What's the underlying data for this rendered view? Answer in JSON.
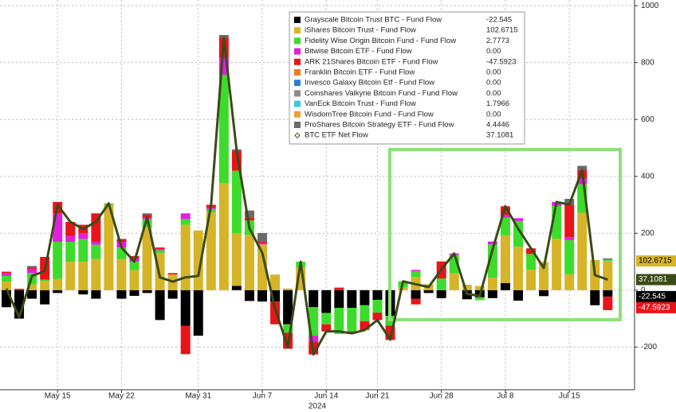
{
  "chart_data": {
    "type": "bar",
    "stacked": true,
    "xlabel": "2024",
    "categories": [
      null,
      null,
      null,
      null,
      "May 15",
      null,
      null,
      null,
      null,
      "May 22",
      null,
      null,
      null,
      null,
      null,
      "May 31",
      null,
      null,
      null,
      null,
      "Jun 7",
      null,
      null,
      null,
      null,
      "Jun 14",
      null,
      null,
      null,
      "Jun 21",
      null,
      null,
      null,
      null,
      "Jun 28",
      null,
      null,
      null,
      null,
      "Jul 8",
      null,
      null,
      null,
      null,
      "Jul 15",
      null,
      null,
      null
    ],
    "ylim": [
      -350,
      1020
    ],
    "yticks": [
      -200,
      0,
      200,
      400,
      600,
      800,
      1000
    ],
    "grid": true,
    "y_axis_side": "right",
    "legend": "top",
    "series": [
      {
        "name": "Grayscale Bitcoin Trust BTC - Fund Flow",
        "color": "#000000",
        "legend_value": "-22.545",
        "end_label": true,
        "values": [
          -60,
          -100,
          -30,
          -50,
          -10,
          0,
          -15,
          -30,
          0,
          -30,
          -20,
          -10,
          -105,
          -30,
          -125,
          -160,
          0,
          0,
          15,
          -38,
          -40,
          -40,
          -120,
          0,
          -60,
          -80,
          -62,
          -62,
          -53,
          -34,
          -90,
          0,
          -30,
          -10,
          -28,
          0,
          -32,
          -25,
          -28,
          25,
          -37,
          0,
          -21,
          0,
          0,
          0,
          -53,
          -22.545
        ]
      },
      {
        "name": "iShares Bitcoin Trust - Fund Flow",
        "color": "#d6b428",
        "legend_value": "102.6715",
        "end_label": true,
        "values": [
          30,
          0,
          20,
          32,
          40,
          100,
          100,
          110,
          300,
          110,
          70,
          220,
          130,
          55,
          230,
          210,
          275,
          377,
          185,
          195,
          161,
          55,
          6,
          80,
          0,
          0,
          0,
          0,
          0,
          0,
          1,
          10,
          46,
          21,
          1,
          59,
          19,
          15,
          44,
          168,
          153,
          72,
          99,
          181,
          56,
          272,
          106,
          102.6715
        ]
      },
      {
        "name": "Fidelity Wise Origin Bitcoin Fund - Fund Flow",
        "color": "#3ddc2c",
        "legend_value": "2.7773",
        "values": [
          20,
          0,
          40,
          5,
          130,
          70,
          80,
          50,
          5,
          40,
          30,
          30,
          10,
          0,
          20,
          0,
          10,
          380,
          220,
          50,
          0,
          0,
          -30,
          20,
          -100,
          -40,
          -92,
          -83,
          -56,
          -45,
          -35,
          21,
          20,
          0,
          40,
          65,
          0,
          -10,
          117,
          62,
          90,
          55,
          0,
          115,
          120,
          100,
          0,
          2.7773
        ]
      },
      {
        "name": "Bitwise Bitcoin ETF - Fund Flow",
        "color": "#e21ee0",
        "legend_value": "0.00",
        "values": [
          10,
          0,
          15,
          0,
          100,
          20,
          20,
          10,
          0,
          20,
          10,
          5,
          5,
          0,
          20,
          0,
          5,
          60,
          0,
          0,
          5,
          0,
          0,
          0,
          -20,
          0,
          0,
          0,
          0,
          0,
          0,
          0,
          5,
          0,
          0,
          5,
          0,
          0,
          10,
          10,
          10,
          0,
          0,
          14,
          10,
          20,
          0,
          0
        ]
      },
      {
        "name": "ARK 21Shares Bitcoin ETF - Fund Flow",
        "color": "#e8141a",
        "legend_value": "-47.5923",
        "end_label": true,
        "values": [
          5,
          5,
          5,
          80,
          40,
          50,
          30,
          100,
          0,
          10,
          10,
          10,
          5,
          5,
          -100,
          0,
          10,
          70,
          70,
          10,
          5,
          -80,
          -56,
          0,
          -46,
          -25,
          9,
          -7,
          -31,
          -26,
          -50,
          0,
          -20,
          0,
          60,
          0,
          0,
          0,
          0,
          30,
          0,
          20,
          0,
          0,
          115,
          30,
          0,
          -47.5923
        ]
      },
      {
        "name": "Franklin Bitcoin ETF - Fund Flow",
        "color": "#f07a1e",
        "legend_value": "0.00",
        "values": [
          0,
          0,
          0,
          0,
          0,
          0,
          0,
          0,
          0,
          0,
          0,
          0,
          0,
          0,
          0,
          0,
          0,
          0,
          0,
          0,
          0,
          0,
          0,
          0,
          0,
          0,
          0,
          0,
          0,
          0,
          0,
          0,
          0,
          0,
          0,
          0,
          0,
          0,
          0,
          0,
          0,
          0,
          0,
          0,
          0,
          0,
          0,
          0
        ]
      },
      {
        "name": "Invesco Galaxy Bitcoin Etf - Fund Flow",
        "color": "#2a7fd4",
        "legend_value": "0.00",
        "values": [
          0,
          0,
          0,
          0,
          0,
          0,
          0,
          0,
          0,
          0,
          0,
          0,
          0,
          0,
          0,
          0,
          0,
          0,
          0,
          0,
          0,
          0,
          0,
          0,
          0,
          0,
          0,
          0,
          0,
          0,
          0,
          0,
          0,
          0,
          0,
          0,
          0,
          0,
          0,
          0,
          0,
          0,
          0,
          0,
          0,
          0,
          0,
          0
        ]
      },
      {
        "name": "Coinshares Valkyrie Bitcoin Fund - Fund Flow",
        "color": "#8c8c8c",
        "legend_value": "0.00",
        "values": [
          0,
          0,
          0,
          0,
          0,
          0,
          0,
          0,
          0,
          0,
          0,
          0,
          0,
          0,
          0,
          0,
          0,
          0,
          0,
          0,
          0,
          0,
          0,
          0,
          0,
          0,
          0,
          0,
          0,
          0,
          0,
          0,
          0,
          0,
          0,
          0,
          0,
          0,
          0,
          0,
          0,
          0,
          0,
          0,
          0,
          0,
          0,
          0
        ]
      },
      {
        "name": "VanEck Bitcoin Trust - Fund Flow",
        "color": "#3ec8e0",
        "legend_value": "1.7966",
        "values": [
          0,
          0,
          0,
          0,
          0,
          0,
          0,
          0,
          0,
          0,
          0,
          0,
          0,
          0,
          0,
          0,
          0,
          0,
          0,
          0,
          0,
          0,
          0,
          0,
          0,
          0,
          0,
          0,
          0,
          0,
          0,
          0,
          0,
          0,
          0,
          0,
          0,
          0,
          0,
          0,
          0,
          0,
          0,
          0,
          0,
          0,
          0,
          1.7966
        ]
      },
      {
        "name": "WisdomTree Bitcoin Fund - Fund Flow",
        "color": "#e8a040",
        "legend_value": "0.00",
        "values": [
          0,
          0,
          0,
          0,
          0,
          0,
          0,
          0,
          0,
          0,
          0,
          0,
          0,
          0,
          0,
          0,
          0,
          0,
          0,
          0,
          0,
          0,
          0,
          0,
          0,
          0,
          0,
          0,
          0,
          0,
          0,
          0,
          0,
          0,
          0,
          0,
          0,
          0,
          0,
          0,
          0,
          0,
          0,
          0,
          0,
          0,
          0,
          0
        ]
      },
      {
        "name": "ProShares Bitcoin Strategy ETF - Fund Flow",
        "color": "#6a6a6a",
        "legend_value": "4.4446",
        "values": [
          0,
          0,
          5,
          0,
          0,
          0,
          0,
          0,
          0,
          0,
          0,
          5,
          0,
          0,
          0,
          0,
          0,
          10,
          5,
          25,
          30,
          0,
          0,
          0,
          0,
          0,
          0,
          0,
          0,
          0,
          0,
          0,
          0,
          0,
          0,
          0,
          0,
          0,
          0,
          0,
          0,
          0,
          0,
          0,
          20,
          15,
          0,
          4.4446
        ]
      },
      {
        "name": "BTC ETF Net Flow",
        "type": "line",
        "color": "#3b4a17",
        "legend_value": "37.1081",
        "end_label": true,
        "values": [
          5,
          -95,
          50,
          67,
          300,
          240,
          215,
          240,
          305,
          150,
          100,
          255,
          45,
          30,
          45,
          50,
          300,
          887,
          490,
          217,
          131,
          -65,
          -200,
          100,
          -226,
          -145,
          -145,
          -152,
          -140,
          -105,
          -174,
          31,
          21,
          11,
          73,
          129,
          -13,
          -20,
          143,
          295,
          216,
          147,
          78,
          310,
          301,
          422,
          53,
          37.1081
        ]
      }
    ]
  }
}
